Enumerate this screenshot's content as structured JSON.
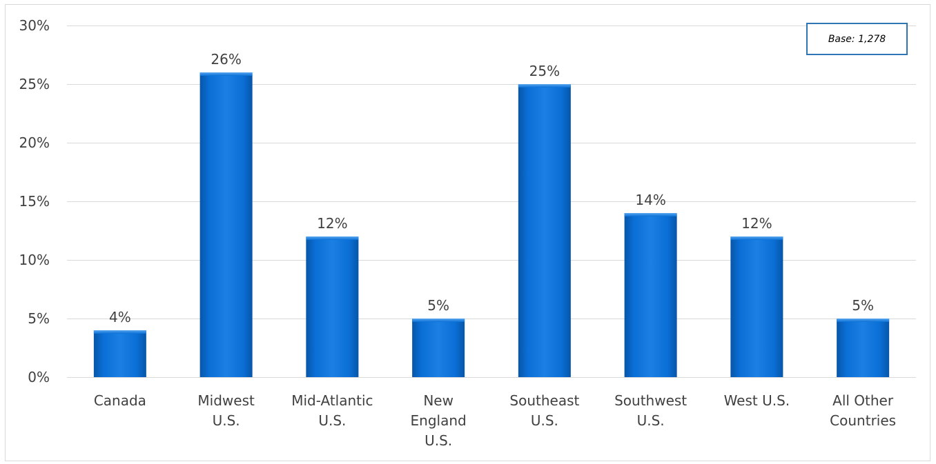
{
  "annotation": {
    "base_text": "Base: 1,278"
  },
  "colors": {
    "bar": "#0a6fd6",
    "bar_dark": "#0756a8",
    "bar_light": "#3a92ea",
    "grid": "#d9d9d9",
    "axis_text": "#404040",
    "base_border": "#2e75b6"
  },
  "chart_data": {
    "type": "bar",
    "categories": [
      [
        "Canada"
      ],
      [
        "Midwest",
        "U.S."
      ],
      [
        "Mid-Atlantic",
        "U.S."
      ],
      [
        "New",
        "England",
        "U.S."
      ],
      [
        "Southeast",
        "U.S."
      ],
      [
        "Southwest",
        "U.S."
      ],
      [
        "West U.S."
      ],
      [
        "All Other",
        "Countries"
      ]
    ],
    "values": [
      4,
      26,
      12,
      5,
      25,
      14,
      12,
      5
    ],
    "value_labels": [
      "4%",
      "26%",
      "12%",
      "5%",
      "25%",
      "14%",
      "12%",
      "5%"
    ],
    "yticks": [
      0,
      5,
      10,
      15,
      20,
      25,
      30
    ],
    "ytick_labels": [
      "0%",
      "5%",
      "10%",
      "15%",
      "20%",
      "25%",
      "30%"
    ],
    "ylim": [
      0,
      30
    ],
    "grid": true,
    "legend": "none",
    "title": "",
    "xlabel": "",
    "ylabel": ""
  }
}
